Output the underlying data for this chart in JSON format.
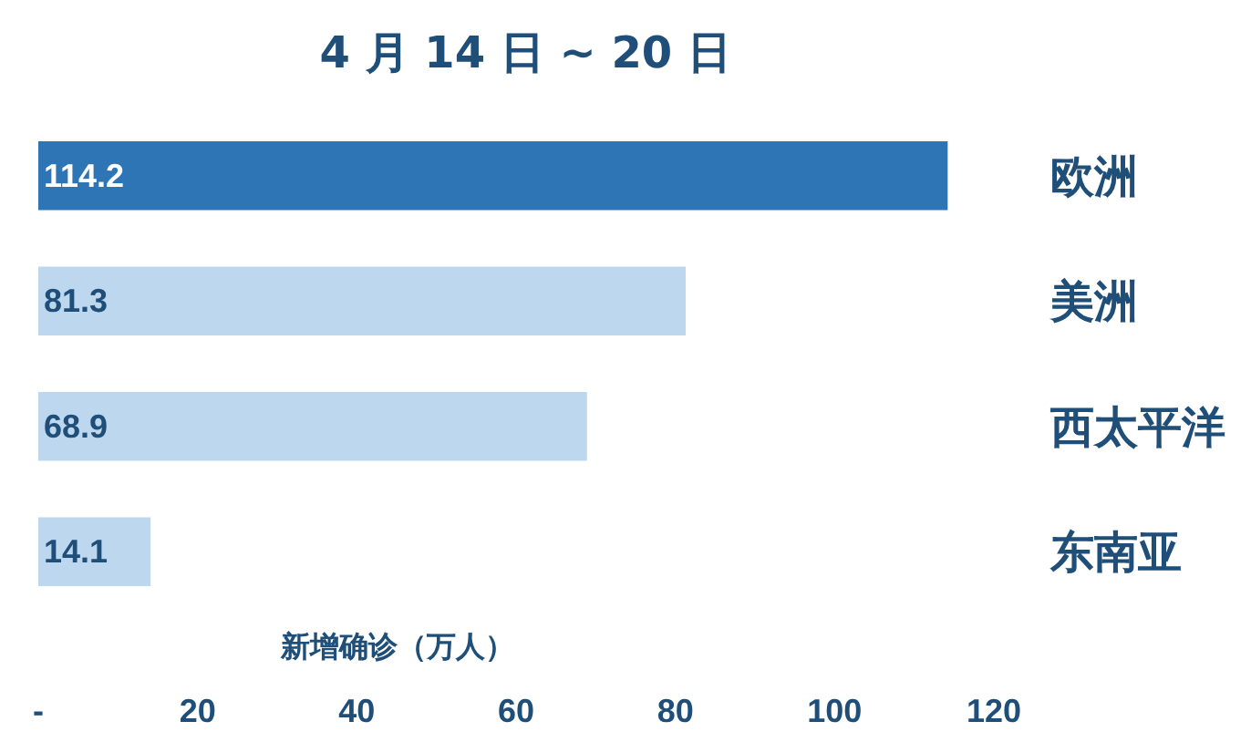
{
  "chart_data": {
    "type": "bar",
    "orientation": "horizontal",
    "title": "4 月 14 日 ~ 20 日",
    "xlabel": "新增确诊（万人）",
    "categories": [
      "欧洲",
      "美洲",
      "西太平洋",
      "东南亚"
    ],
    "values": [
      114.2,
      81.3,
      68.9,
      14.1
    ],
    "colors": [
      "#2e75b6",
      "#bdd7ee",
      "#bdd7ee",
      "#bdd7ee"
    ],
    "xlim": [
      0,
      120
    ],
    "xticks": [
      {
        "value": 0,
        "label": "-"
      },
      20,
      40,
      60,
      80,
      100,
      120
    ],
    "data_labels": true,
    "grid": false,
    "legend": false
  }
}
